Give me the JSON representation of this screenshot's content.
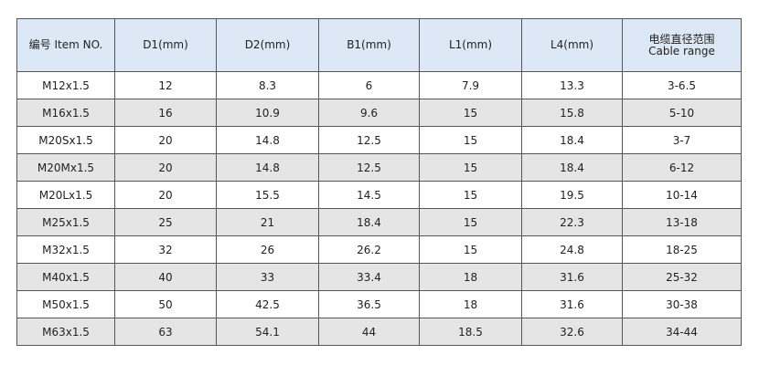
{
  "table": {
    "header": [
      "编号 Item NO.",
      "D1(mm)",
      "D2(mm)",
      "B1(mm)",
      "L1(mm)",
      "L4(mm)",
      [
        "电缆直径范围",
        "Cable range"
      ]
    ],
    "rows": [
      [
        "M12x1.5",
        "12",
        "8.3",
        "6",
        "7.9",
        "13.3",
        "3-6.5"
      ],
      [
        "M16x1.5",
        "16",
        "10.9",
        "9.6",
        "15",
        "15.8",
        "5-10"
      ],
      [
        "M20Sx1.5",
        "20",
        "14.8",
        "12.5",
        "15",
        "18.4",
        "3-7"
      ],
      [
        "M20Mx1.5",
        "20",
        "14.8",
        "12.5",
        "15",
        "18.4",
        "6-12"
      ],
      [
        "M20Lx1.5",
        "20",
        "15.5",
        "14.5",
        "15",
        "19.5",
        "10-14"
      ],
      [
        "M25x1.5",
        "25",
        "21",
        "18.4",
        "15",
        "22.3",
        "13-18"
      ],
      [
        "M32x1.5",
        "32",
        "26",
        "26.2",
        "15",
        "24.8",
        "18-25"
      ],
      [
        "M40x1.5",
        "40",
        "33",
        "33.4",
        "18",
        "31.6",
        "25-32"
      ],
      [
        "M50x1.5",
        "50",
        "42.5",
        "36.5",
        "18",
        "31.6",
        "30-38"
      ],
      [
        "M63x1.5",
        "63",
        "54.1",
        "44",
        "18.5",
        "32.6",
        "34-44"
      ]
    ]
  }
}
